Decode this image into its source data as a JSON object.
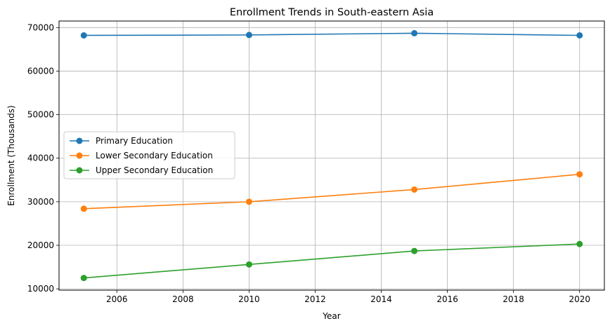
{
  "chart_data": {
    "type": "line",
    "title": "Enrollment Trends in South-eastern Asia",
    "xlabel": "Year",
    "ylabel": "Enrollment (Thousands)",
    "x": [
      2005,
      2010,
      2015,
      2020
    ],
    "xlim": [
      2004.25,
      2020.75
    ],
    "ylim": [
      9700,
      71500
    ],
    "xticks": [
      2006,
      2008,
      2010,
      2012,
      2014,
      2016,
      2018,
      2020
    ],
    "yticks": [
      10000,
      20000,
      30000,
      40000,
      50000,
      60000,
      70000
    ],
    "grid": true,
    "legend_position": "center-left",
    "series": [
      {
        "name": "Primary Education",
        "color": "#1f77b4",
        "values": [
          68200,
          68300,
          68700,
          68200
        ]
      },
      {
        "name": "Lower Secondary Education",
        "color": "#ff7f0e",
        "values": [
          28400,
          30000,
          32800,
          36300
        ]
      },
      {
        "name": "Upper Secondary Education",
        "color": "#2ca02c",
        "values": [
          12500,
          15600,
          18700,
          20300
        ]
      }
    ]
  }
}
